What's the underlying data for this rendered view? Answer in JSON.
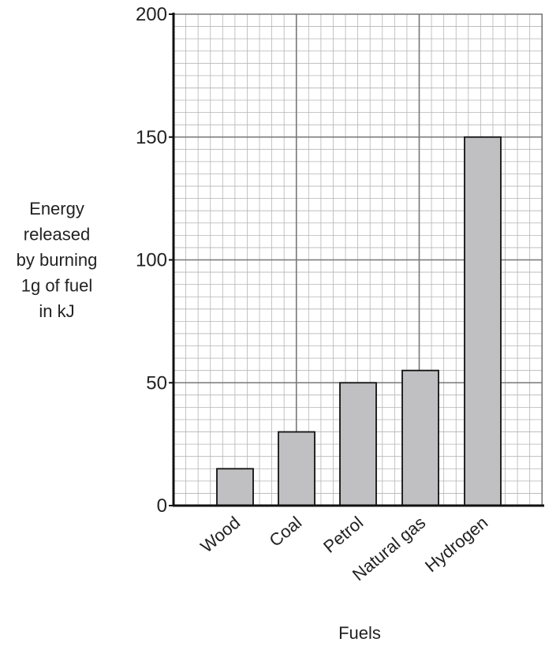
{
  "chart_data": {
    "type": "bar",
    "categories": [
      "Wood",
      "Coal",
      "Petrol",
      "Natural gas",
      "Hydrogen"
    ],
    "values": [
      15,
      30,
      50,
      55,
      150
    ],
    "xlabel": "Fuels",
    "ylabel_lines": [
      "Energy",
      "released",
      "by burning",
      "1g of fuel",
      "in kJ"
    ],
    "ylim": [
      0,
      200
    ],
    "yticks": [
      0,
      50,
      100,
      150,
      200
    ],
    "grid": true,
    "bar_color": "#c0c0c2",
    "legend": "none"
  }
}
